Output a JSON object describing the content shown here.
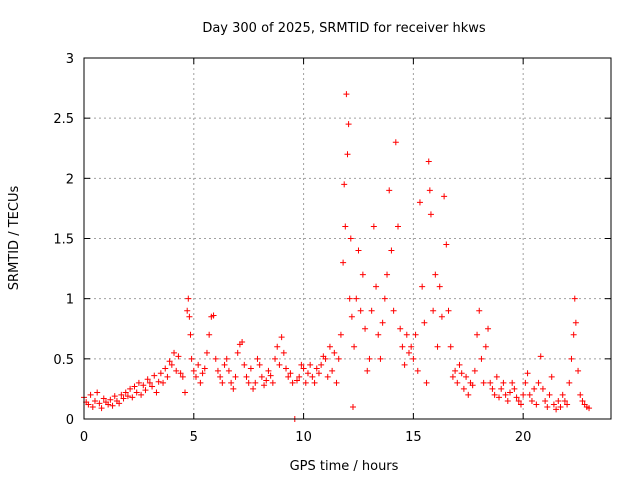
{
  "chart_data": {
    "type": "scatter",
    "title": "Day 300 of 2025, SRMTID for receiver hkws",
    "xlabel": "GPS time / hours",
    "ylabel": "SRMTID / TECUs",
    "xlim": [
      0,
      24
    ],
    "ylim": [
      0,
      3
    ],
    "xticks": [
      0,
      5,
      10,
      15,
      20
    ],
    "xtick_labels": [
      "0",
      "5",
      "10",
      "15",
      "20"
    ],
    "yticks": [
      0,
      0.5,
      1,
      1.5,
      2,
      2.5,
      3
    ],
    "ytick_labels": [
      "0",
      "0.5",
      "1",
      "1.5",
      "2",
      "2.5",
      "3"
    ],
    "grid": true,
    "marker": "plus",
    "color": "#ff0000",
    "series": [
      {
        "name": "SRMTID",
        "points": [
          [
            0.0,
            0.18
          ],
          [
            0.1,
            0.14
          ],
          [
            0.2,
            0.12
          ],
          [
            0.3,
            0.2
          ],
          [
            0.4,
            0.1
          ],
          [
            0.5,
            0.15
          ],
          [
            0.6,
            0.22
          ],
          [
            0.7,
            0.13
          ],
          [
            0.8,
            0.09
          ],
          [
            0.9,
            0.17
          ],
          [
            1.0,
            0.14
          ],
          [
            1.1,
            0.12
          ],
          [
            1.2,
            0.16
          ],
          [
            1.3,
            0.11
          ],
          [
            1.4,
            0.19
          ],
          [
            1.5,
            0.15
          ],
          [
            1.6,
            0.13
          ],
          [
            1.7,
            0.2
          ],
          [
            1.8,
            0.17
          ],
          [
            1.9,
            0.22
          ],
          [
            2.0,
            0.19
          ],
          [
            2.1,
            0.25
          ],
          [
            2.2,
            0.18
          ],
          [
            2.3,
            0.27
          ],
          [
            2.4,
            0.22
          ],
          [
            2.5,
            0.3
          ],
          [
            2.6,
            0.2
          ],
          [
            2.7,
            0.28
          ],
          [
            2.8,
            0.24
          ],
          [
            2.9,
            0.33
          ],
          [
            3.0,
            0.3
          ],
          [
            3.1,
            0.27
          ],
          [
            3.2,
            0.36
          ],
          [
            3.3,
            0.22
          ],
          [
            3.4,
            0.31
          ],
          [
            3.5,
            0.38
          ],
          [
            3.6,
            0.3
          ],
          [
            3.7,
            0.42
          ],
          [
            3.8,
            0.35
          ],
          [
            3.9,
            0.48
          ],
          [
            4.0,
            0.45
          ],
          [
            4.1,
            0.55
          ],
          [
            4.2,
            0.4
          ],
          [
            4.3,
            0.52
          ],
          [
            4.4,
            0.38
          ],
          [
            4.5,
            0.35
          ],
          [
            4.6,
            0.22
          ],
          [
            4.7,
            0.9
          ],
          [
            4.75,
            1.0
          ],
          [
            4.8,
            0.85
          ],
          [
            4.85,
            0.7
          ],
          [
            4.9,
            0.5
          ],
          [
            5.0,
            0.4
          ],
          [
            5.1,
            0.35
          ],
          [
            5.2,
            0.45
          ],
          [
            5.3,
            0.3
          ],
          [
            5.4,
            0.38
          ],
          [
            5.5,
            0.42
          ],
          [
            5.6,
            0.55
          ],
          [
            5.7,
            0.7
          ],
          [
            5.8,
            0.85
          ],
          [
            5.9,
            0.86
          ],
          [
            6.0,
            0.5
          ],
          [
            6.1,
            0.4
          ],
          [
            6.2,
            0.35
          ],
          [
            6.3,
            0.3
          ],
          [
            6.4,
            0.45
          ],
          [
            6.5,
            0.5
          ],
          [
            6.6,
            0.4
          ],
          [
            6.7,
            0.3
          ],
          [
            6.8,
            0.25
          ],
          [
            6.9,
            0.35
          ],
          [
            7.0,
            0.55
          ],
          [
            7.1,
            0.62
          ],
          [
            7.2,
            0.64
          ],
          [
            7.3,
            0.45
          ],
          [
            7.4,
            0.35
          ],
          [
            7.5,
            0.3
          ],
          [
            7.6,
            0.42
          ],
          [
            7.7,
            0.25
          ],
          [
            7.8,
            0.3
          ],
          [
            7.9,
            0.5
          ],
          [
            8.0,
            0.45
          ],
          [
            8.1,
            0.35
          ],
          [
            8.2,
            0.28
          ],
          [
            8.3,
            0.32
          ],
          [
            8.4,
            0.4
          ],
          [
            8.5,
            0.36
          ],
          [
            8.6,
            0.3
          ],
          [
            8.7,
            0.5
          ],
          [
            8.8,
            0.6
          ],
          [
            8.9,
            0.45
          ],
          [
            9.0,
            0.68
          ],
          [
            9.1,
            0.55
          ],
          [
            9.2,
            0.42
          ],
          [
            9.3,
            0.35
          ],
          [
            9.4,
            0.38
          ],
          [
            9.5,
            0.3
          ],
          [
            9.6,
            0.0
          ],
          [
            9.7,
            0.32
          ],
          [
            9.8,
            0.35
          ],
          [
            9.9,
            0.45
          ],
          [
            10.0,
            0.42
          ],
          [
            10.1,
            0.3
          ],
          [
            10.2,
            0.38
          ],
          [
            10.3,
            0.45
          ],
          [
            10.4,
            0.35
          ],
          [
            10.5,
            0.3
          ],
          [
            10.6,
            0.42
          ],
          [
            10.7,
            0.38
          ],
          [
            10.8,
            0.45
          ],
          [
            10.9,
            0.52
          ],
          [
            11.0,
            0.5
          ],
          [
            11.1,
            0.35
          ],
          [
            11.2,
            0.6
          ],
          [
            11.3,
            0.4
          ],
          [
            11.4,
            0.55
          ],
          [
            11.5,
            0.3
          ],
          [
            11.6,
            0.5
          ],
          [
            11.7,
            0.7
          ],
          [
            11.8,
            1.3
          ],
          [
            11.85,
            1.95
          ],
          [
            11.9,
            1.6
          ],
          [
            11.95,
            2.7
          ],
          [
            12.0,
            2.2
          ],
          [
            12.05,
            2.45
          ],
          [
            12.1,
            1.0
          ],
          [
            12.15,
            1.5
          ],
          [
            12.2,
            0.85
          ],
          [
            12.25,
            0.1
          ],
          [
            12.3,
            0.6
          ],
          [
            12.4,
            1.0
          ],
          [
            12.5,
            1.4
          ],
          [
            12.6,
            0.9
          ],
          [
            12.7,
            1.2
          ],
          [
            12.8,
            0.75
          ],
          [
            12.9,
            0.4
          ],
          [
            13.0,
            0.5
          ],
          [
            13.1,
            0.9
          ],
          [
            13.2,
            1.6
          ],
          [
            13.3,
            1.1
          ],
          [
            13.4,
            0.7
          ],
          [
            13.5,
            0.5
          ],
          [
            13.6,
            0.8
          ],
          [
            13.7,
            1.0
          ],
          [
            13.8,
            1.2
          ],
          [
            13.9,
            1.9
          ],
          [
            14.0,
            1.4
          ],
          [
            14.1,
            0.9
          ],
          [
            14.2,
            2.3
          ],
          [
            14.3,
            1.6
          ],
          [
            14.4,
            0.75
          ],
          [
            14.5,
            0.6
          ],
          [
            14.6,
            0.45
          ],
          [
            14.7,
            0.7
          ],
          [
            14.8,
            0.55
          ],
          [
            14.9,
            0.6
          ],
          [
            15.0,
            0.5
          ],
          [
            15.1,
            0.7
          ],
          [
            15.2,
            0.4
          ],
          [
            15.3,
            1.8
          ],
          [
            15.4,
            1.1
          ],
          [
            15.5,
            0.8
          ],
          [
            15.6,
            0.3
          ],
          [
            15.7,
            2.14
          ],
          [
            15.75,
            1.9
          ],
          [
            15.8,
            1.7
          ],
          [
            15.9,
            0.9
          ],
          [
            16.0,
            1.2
          ],
          [
            16.1,
            0.6
          ],
          [
            16.2,
            1.1
          ],
          [
            16.3,
            0.85
          ],
          [
            16.4,
            1.85
          ],
          [
            16.5,
            1.45
          ],
          [
            16.6,
            0.9
          ],
          [
            16.7,
            0.6
          ],
          [
            16.8,
            0.35
          ],
          [
            16.9,
            0.4
          ],
          [
            17.0,
            0.3
          ],
          [
            17.1,
            0.45
          ],
          [
            17.2,
            0.38
          ],
          [
            17.3,
            0.25
          ],
          [
            17.4,
            0.35
          ],
          [
            17.5,
            0.2
          ],
          [
            17.6,
            0.3
          ],
          [
            17.7,
            0.28
          ],
          [
            17.8,
            0.4
          ],
          [
            17.9,
            0.7
          ],
          [
            18.0,
            0.9
          ],
          [
            18.1,
            0.5
          ],
          [
            18.2,
            0.3
          ],
          [
            18.3,
            0.6
          ],
          [
            18.4,
            0.75
          ],
          [
            18.5,
            0.3
          ],
          [
            18.6,
            0.25
          ],
          [
            18.7,
            0.2
          ],
          [
            18.8,
            0.35
          ],
          [
            18.9,
            0.18
          ],
          [
            19.0,
            0.25
          ],
          [
            19.1,
            0.3
          ],
          [
            19.2,
            0.2
          ],
          [
            19.3,
            0.15
          ],
          [
            19.4,
            0.22
          ],
          [
            19.5,
            0.3
          ],
          [
            19.6,
            0.25
          ],
          [
            19.7,
            0.18
          ],
          [
            19.8,
            0.15
          ],
          [
            19.9,
            0.12
          ],
          [
            20.0,
            0.2
          ],
          [
            20.1,
            0.3
          ],
          [
            20.2,
            0.38
          ],
          [
            20.3,
            0.2
          ],
          [
            20.4,
            0.15
          ],
          [
            20.5,
            0.25
          ],
          [
            20.6,
            0.12
          ],
          [
            20.7,
            0.3
          ],
          [
            20.8,
            0.52
          ],
          [
            20.9,
            0.25
          ],
          [
            21.0,
            0.15
          ],
          [
            21.1,
            0.1
          ],
          [
            21.2,
            0.2
          ],
          [
            21.3,
            0.35
          ],
          [
            21.4,
            0.12
          ],
          [
            21.5,
            0.08
          ],
          [
            21.6,
            0.15
          ],
          [
            21.7,
            0.1
          ],
          [
            21.8,
            0.2
          ],
          [
            21.9,
            0.15
          ],
          [
            22.0,
            0.12
          ],
          [
            22.1,
            0.3
          ],
          [
            22.2,
            0.5
          ],
          [
            22.3,
            0.7
          ],
          [
            22.35,
            1.0
          ],
          [
            22.4,
            0.8
          ],
          [
            22.5,
            0.4
          ],
          [
            22.6,
            0.2
          ],
          [
            22.7,
            0.15
          ],
          [
            22.8,
            0.12
          ],
          [
            22.9,
            0.1
          ],
          [
            23.0,
            0.09
          ]
        ]
      }
    ]
  }
}
